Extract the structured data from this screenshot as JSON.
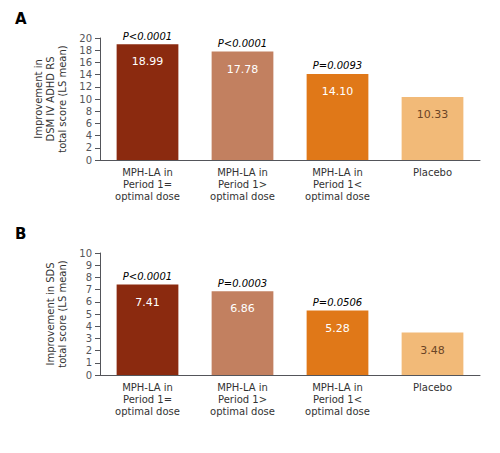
{
  "chart_data": [
    {
      "type": "bar",
      "title": "A",
      "ylabel": "Improvement in\nDSM IV ADHD RS\ntotal score (LS mean)",
      "categories": [
        "MPH-LA in\nPeriod 1=\noptimal dose",
        "MPH-LA in\nPeriod 1>\noptimal dose",
        "MPH-LA in\nPeriod 1<\noptimal dose",
        "Placebo"
      ],
      "values": [
        18.99,
        17.78,
        14.1,
        10.33
      ],
      "value_labels": [
        "18.99",
        "17.78",
        "14.10",
        "10.33"
      ],
      "annotations": [
        "P<0.0001",
        "P<0.0001",
        "P=0.0093",
        null
      ],
      "colors": [
        "#8B2A0F",
        "#C28060",
        "#E07818",
        "#F2BA78"
      ],
      "ylim": [
        0,
        20
      ],
      "yticks": [
        0,
        2,
        4,
        6,
        8,
        10,
        12,
        14,
        16,
        18,
        20
      ],
      "grid": false,
      "data_labels": true
    },
    {
      "type": "bar",
      "title": "B",
      "ylabel": "Improvement in SDS\ntotal score (LS mean)",
      "categories": [
        "MPH-LA in\nPeriod 1=\noptimal dose",
        "MPH-LA in\nPeriod 1>\noptimal dose",
        "MPH-LA in\nPeriod 1<\noptimal dose",
        "Placebo"
      ],
      "values": [
        7.41,
        6.86,
        5.28,
        3.48
      ],
      "value_labels": [
        "7.41",
        "6.86",
        "5.28",
        "3.48"
      ],
      "annotations": [
        "P<0.0001",
        "P=0.0003",
        "P=0.0506",
        null
      ],
      "colors": [
        "#8B2A0F",
        "#C28060",
        "#E07818",
        "#F2BA78"
      ],
      "ylim": [
        0,
        10
      ],
      "yticks": [
        0,
        1,
        2,
        3,
        4,
        5,
        6,
        7,
        8,
        9,
        10
      ],
      "grid": false,
      "data_labels": true
    }
  ]
}
